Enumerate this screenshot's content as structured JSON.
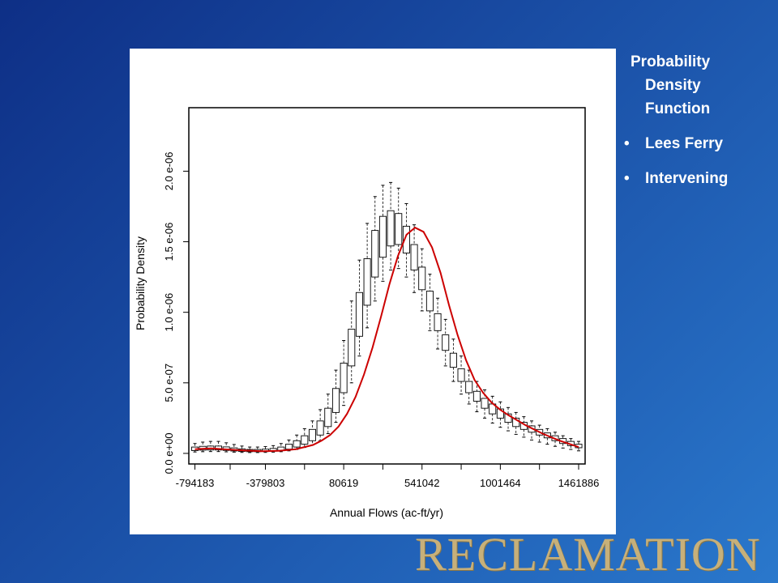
{
  "side": {
    "heading_line1": "Probability",
    "heading_line2": "Density",
    "heading_line3": "Function",
    "bullets": [
      "Lees Ferry",
      "Intervening"
    ],
    "bullet_glyph": "•"
  },
  "logo_text": "RECLAMATION",
  "colors": {
    "background_start": "#0e2f86",
    "background_end": "#2a78cc",
    "curve": "#cc0000",
    "logo": "#c7b07a"
  },
  "chart_data": {
    "type": "boxplot",
    "xlabel": "Annual Flows (ac-ft/yr)",
    "ylabel": "Probability Density",
    "xlim": [
      -830000,
      1500000
    ],
    "ylim": [
      -7.5e-08,
      2.45e-06
    ],
    "x_ticks": [
      -794183,
      -379803,
      80619,
      541042,
      1001464,
      1461886
    ],
    "x_tick_labels": [
      "-794183",
      "-379803",
      "80619",
      "541042",
      "1001464",
      "1461886"
    ],
    "y_ticks": [
      0,
      5e-07,
      1e-06,
      1.5e-06,
      2e-06
    ],
    "y_tick_labels": [
      "0.0 e+00",
      "5.0 e-07",
      "1.0 e-06",
      "1.5 e-06",
      "2.0 e-06"
    ],
    "boxes": {
      "x_start": -794183,
      "x_end": 1461886,
      "count": 50,
      "q1": [
        2e-08,
        2.3e-08,
        2.4e-08,
        2.4e-08,
        2.1e-08,
        1.7e-08,
        1.4e-08,
        1.2e-08,
        1.2e-08,
        1.3e-08,
        1.6e-08,
        2.1e-08,
        3e-08,
        4.5e-08,
        6.5e-08,
        9e-08,
        1.3e-07,
        1.9e-07,
        2.9e-07,
        4.3e-07,
        6.2e-07,
        8.3e-07,
        1.05e-06,
        1.25e-06,
        1.39e-06,
        1.47e-06,
        1.48e-06,
        1.42e-06,
        1.3e-06,
        1.16e-06,
        1.01e-06,
        8.7e-07,
        7.3e-07,
        6.1e-07,
        5.1e-07,
        4.3e-07,
        3.7e-07,
        3.2e-07,
        2.8e-07,
        2.5e-07,
        2.2e-07,
        1.9e-07,
        1.7e-07,
        1.5e-07,
        1.3e-07,
        1.1e-07,
        9e-08,
        7e-08,
        5.5e-08,
        4e-08
      ],
      "q3": [
        4.5e-08,
        5e-08,
        5.2e-08,
        5.2e-08,
        4.6e-08,
        3.9e-08,
        3.2e-08,
        2.8e-08,
        2.8e-08,
        3e-08,
        3.5e-08,
        4.5e-08,
        6.5e-08,
        9e-08,
        1.25e-07,
        1.7e-07,
        2.3e-07,
        3.2e-07,
        4.6e-07,
        6.4e-07,
        8.8e-07,
        1.14e-06,
        1.38e-06,
        1.58e-06,
        1.68e-06,
        1.72e-06,
        1.7e-06,
        1.61e-06,
        1.48e-06,
        1.32e-06,
        1.15e-06,
        9.9e-07,
        8.4e-07,
        7.1e-07,
        6e-07,
        5.1e-07,
        4.4e-07,
        3.9e-07,
        3.5e-07,
        3.15e-07,
        2.8e-07,
        2.5e-07,
        2.2e-07,
        1.95e-07,
        1.7e-07,
        1.45e-07,
        1.25e-07,
        1.05e-07,
        8.5e-08,
        6.5e-08
      ],
      "lo": [
        1e-08,
        1.2e-08,
        1.3e-08,
        1.3e-08,
        1.1e-08,
        9e-09,
        7e-09,
        6e-09,
        6e-09,
        7e-09,
        9e-09,
        1.2e-08,
        1.8e-08,
        2.8e-08,
        4.2e-08,
        6e-08,
        9e-08,
        1.4e-07,
        2.2e-07,
        3.4e-07,
        5e-07,
        6.9e-07,
        8.9e-07,
        1.08e-06,
        1.22e-06,
        1.3e-06,
        1.31e-06,
        1.25e-06,
        1.14e-06,
        1.01e-06,
        8.7e-07,
        7.4e-07,
        6.2e-07,
        5.1e-07,
        4.2e-07,
        3.5e-07,
        2.95e-07,
        2.5e-07,
        2.15e-07,
        1.85e-07,
        1.6e-07,
        1.35e-07,
        1.15e-07,
        9.5e-08,
        8e-08,
        6.5e-08,
        5e-08,
        3.8e-08,
        2.8e-08,
        1.8e-08
      ],
      "hi": [
        7e-08,
        8e-08,
        8.5e-08,
        8.5e-08,
        7.5e-08,
        6.3e-08,
        5.2e-08,
        4.5e-08,
        4.5e-08,
        4.8e-08,
        5.5e-08,
        7e-08,
        9.5e-08,
        1.3e-07,
        1.75e-07,
        2.3e-07,
        3.1e-07,
        4.2e-07,
        5.9e-07,
        8e-07,
        1.08e-06,
        1.37e-06,
        1.63e-06,
        1.82e-06,
        1.9e-06,
        1.92e-06,
        1.88e-06,
        1.77e-06,
        1.62e-06,
        1.45e-06,
        1.27e-06,
        1.1e-06,
        9.5e-07,
        8.1e-07,
        6.9e-07,
        5.9e-07,
        5.1e-07,
        4.5e-07,
        4.05e-07,
        3.65e-07,
        3.25e-07,
        2.9e-07,
        2.6e-07,
        2.3e-07,
        2e-07,
        1.75e-07,
        1.5e-07,
        1.25e-07,
        1.05e-07,
        8.5e-08
      ]
    },
    "curve": {
      "x": [
        -794183,
        -700000,
        -600000,
        -500000,
        -400000,
        -300000,
        -200000,
        -100000,
        -50000,
        0,
        50000,
        100000,
        150000,
        200000,
        250000,
        300000,
        350000,
        400000,
        450000,
        500000,
        550000,
        600000,
        650000,
        700000,
        750000,
        800000,
        850000,
        900000,
        950000,
        1000000,
        1050000,
        1100000,
        1150000,
        1200000,
        1250000,
        1300000,
        1350000,
        1400000,
        1461886
      ],
      "y": [
        3e-08,
        3.5e-08,
        2.8e-08,
        2e-08,
        1.5e-08,
        1.8e-08,
        3e-08,
        6e-08,
        9e-08,
        1.3e-07,
        1.9e-07,
        2.8e-07,
        4e-07,
        5.6e-07,
        7.5e-07,
        9.7e-07,
        1.2e-06,
        1.4e-06,
        1.55e-06,
        1.6e-06,
        1.57e-06,
        1.46e-06,
        1.28e-06,
        1.05e-06,
        8.4e-07,
        6.6e-07,
        5.2e-07,
        4.3e-07,
        3.6e-07,
        3.1e-07,
        2.7e-07,
        2.35e-07,
        2e-07,
        1.7e-07,
        1.4e-07,
        1.15e-07,
        9e-08,
        7e-08,
        4.5e-08
      ]
    }
  }
}
